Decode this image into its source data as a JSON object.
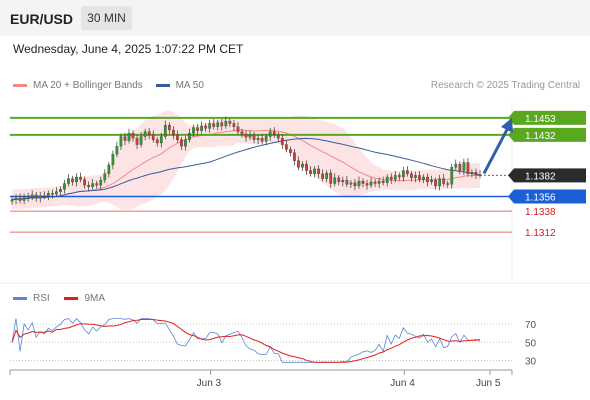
{
  "header": {
    "symbol": "EUR/USD",
    "timeframe": "30 MIN"
  },
  "timestamp": "Wednesday, June 4, 2025 1:07:22 PM CET",
  "legend": {
    "price": [
      {
        "label": "MA 20 + Bollinger Bands",
        "color": "#f08a8a"
      },
      {
        "label": "MA 50",
        "color": "#3a5a9a"
      }
    ],
    "rsi": [
      {
        "label": "RSI",
        "color": "#5b84d6"
      },
      {
        "label": "9MA",
        "color": "#e02020"
      }
    ]
  },
  "credit": "Research © 2025 Trading Central",
  "colors": {
    "bull": "#2e9a2e",
    "bear": "#d43b3b",
    "resistance": "#5aa820",
    "pivot": "#1a5fd6",
    "support": "#e87070",
    "arrow": "#2f5fa8"
  },
  "chart_data": [
    {
      "type": "candlestick",
      "ylim": [
        1.129,
        1.1475
      ],
      "levels": [
        {
          "label": "1.1453",
          "value": 1.1453,
          "kind": "resistance"
        },
        {
          "label": "1.1432",
          "value": 1.1432,
          "kind": "resistance"
        },
        {
          "label": "1.1382",
          "value": 1.1382,
          "kind": "current"
        },
        {
          "label": "1.1356",
          "value": 1.1356,
          "kind": "pivot"
        },
        {
          "label": "1.1338",
          "value": 1.1338,
          "kind": "support"
        },
        {
          "label": "1.1312",
          "value": 1.1312,
          "kind": "support"
        }
      ],
      "x_ticks": [
        {
          "label": "Jun 3",
          "index": 48
        },
        {
          "label": "Jun 4",
          "index": 96
        },
        {
          "label": "Jun 5",
          "index": 120
        }
      ],
      "close": [
        1.1352,
        1.1354,
        1.1351,
        1.1356,
        1.1355,
        1.1358,
        1.1354,
        1.1357,
        1.1356,
        1.136,
        1.1359,
        1.1362,
        1.1365,
        1.1372,
        1.1378,
        1.1374,
        1.138,
        1.1377,
        1.137,
        1.1368,
        1.1372,
        1.137,
        1.1376,
        1.1384,
        1.1395,
        1.1408,
        1.1418,
        1.143,
        1.1425,
        1.1434,
        1.1428,
        1.142,
        1.143,
        1.1436,
        1.1432,
        1.1426,
        1.1422,
        1.143,
        1.1444,
        1.1438,
        1.1432,
        1.1426,
        1.1418,
        1.1426,
        1.1434,
        1.1441,
        1.1437,
        1.1443,
        1.144,
        1.1446,
        1.1442,
        1.1447,
        1.1443,
        1.1449,
        1.1446,
        1.1442,
        1.1436,
        1.1433,
        1.1429,
        1.1432,
        1.1426,
        1.1428,
        1.1424,
        1.143,
        1.1436,
        1.1432,
        1.1428,
        1.142,
        1.1414,
        1.141,
        1.14,
        1.1392,
        1.1396,
        1.1388,
        1.1384,
        1.139,
        1.1384,
        1.1378,
        1.1385,
        1.1372,
        1.1379,
        1.1374,
        1.1376,
        1.1371,
        1.1373,
        1.1369,
        1.1375,
        1.1372,
        1.137,
        1.1374,
        1.1372,
        1.1375,
        1.1373,
        1.138,
        1.1377,
        1.1382,
        1.138,
        1.1388,
        1.1384,
        1.1379,
        1.1382,
        1.1377,
        1.138,
        1.1374,
        1.1376,
        1.1369,
        1.1378,
        1.1372,
        1.1371,
        1.1392,
        1.1396,
        1.1388,
        1.1398,
        1.1384,
        1.1386,
        1.1383,
        1.1382
      ]
    },
    {
      "type": "line",
      "title": "RSI",
      "ylim": [
        25,
        80
      ],
      "y_ticks": [
        {
          "label": "70",
          "value": 70
        },
        {
          "label": "50",
          "value": 50
        },
        {
          "label": "30",
          "value": 30
        }
      ]
    }
  ]
}
